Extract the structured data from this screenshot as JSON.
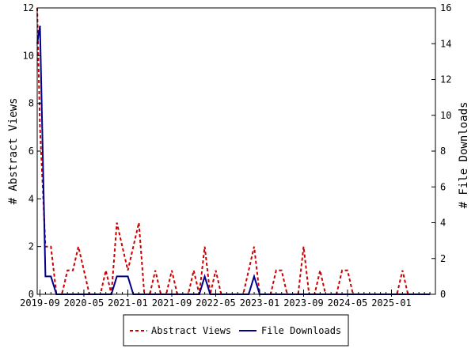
{
  "chart_data": {
    "type": "line",
    "title": "",
    "xlabel": "",
    "ylabel_left": "# Abstract Views",
    "ylabel_right": "# File Downloads",
    "ylim_left": [
      0,
      12
    ],
    "ylim_right": [
      0,
      16
    ],
    "yticks_left": [
      "0",
      "2",
      "4",
      "6",
      "8",
      "10",
      "12"
    ],
    "yticks_right": [
      "0",
      "2",
      "4",
      "6",
      "8",
      "10",
      "12",
      "14",
      "16"
    ],
    "xlim": [
      "2019-09",
      "2025-08"
    ],
    "xticks": [
      "2019-09",
      "2020-05",
      "2021-01",
      "2021-09",
      "2022-05",
      "2023-01",
      "2023-09",
      "2024-05",
      "2025-01"
    ],
    "grid": false,
    "legend_position": "bottom",
    "legend": [
      "Abstract Views",
      "File Downloads"
    ],
    "series": [
      {
        "name": "Abstract Views",
        "axis": "left",
        "color": "#cc0000",
        "dash": "dashed",
        "x": [
          "2019-08",
          "2019-09",
          "2019-10",
          "2019-11",
          "2019-12",
          "2020-01",
          "2020-02",
          "2020-03",
          "2020-04",
          "2020-05",
          "2020-06",
          "2020-07",
          "2020-08",
          "2020-09",
          "2020-10",
          "2020-11",
          "2020-12",
          "2021-01",
          "2021-02",
          "2021-03",
          "2021-04",
          "2021-05",
          "2021-06",
          "2021-07",
          "2021-08",
          "2021-09",
          "2021-10",
          "2021-11",
          "2021-12",
          "2022-01",
          "2022-02",
          "2022-03",
          "2022-04",
          "2022-05",
          "2022-06",
          "2022-07",
          "2022-08",
          "2022-09",
          "2022-10",
          "2022-11",
          "2022-12",
          "2023-01",
          "2023-02",
          "2023-03",
          "2023-04",
          "2023-05",
          "2023-06",
          "2023-07",
          "2023-08",
          "2023-09",
          "2023-10",
          "2023-11",
          "2023-12",
          "2024-01",
          "2024-02",
          "2024-03",
          "2024-04",
          "2024-05",
          "2024-06",
          "2024-07",
          "2024-08",
          "2024-09",
          "2024-10",
          "2024-11",
          "2024-12",
          "2025-01",
          "2025-02",
          "2025-03",
          "2025-04",
          "2025-05",
          "2025-06",
          "2025-07",
          "2025-08"
        ],
        "values": [
          12,
          7,
          2,
          2,
          0,
          0,
          1,
          1,
          2,
          1,
          0,
          0,
          0,
          1,
          0,
          3,
          2,
          1,
          2,
          3,
          0,
          0,
          1,
          0,
          0,
          1,
          0,
          0,
          0,
          1,
          0,
          2,
          0,
          1,
          0,
          0,
          0,
          0,
          0,
          1,
          2,
          0,
          0,
          0,
          1,
          1,
          0,
          0,
          0,
          2,
          0,
          0,
          1,
          0,
          0,
          0,
          1,
          1,
          0,
          0,
          0,
          0,
          0,
          0,
          0,
          0,
          0,
          1,
          0,
          0,
          0,
          0,
          0
        ]
      },
      {
        "name": "File Downloads",
        "axis": "right",
        "color": "#00008b",
        "dash": "solid",
        "x": [
          "2019-08",
          "2019-09",
          "2019-10",
          "2019-11",
          "2019-12",
          "2020-01",
          "2020-02",
          "2020-03",
          "2020-04",
          "2020-05",
          "2020-06",
          "2020-07",
          "2020-08",
          "2020-09",
          "2020-10",
          "2020-11",
          "2020-12",
          "2021-01",
          "2021-02",
          "2021-03",
          "2021-04",
          "2021-05",
          "2021-06",
          "2021-07",
          "2021-08",
          "2021-09",
          "2021-10",
          "2021-11",
          "2021-12",
          "2022-01",
          "2022-02",
          "2022-03",
          "2022-04",
          "2022-05",
          "2022-06",
          "2022-07",
          "2022-08",
          "2022-09",
          "2022-10",
          "2022-11",
          "2022-12",
          "2023-01",
          "2023-02",
          "2023-03",
          "2023-04",
          "2023-05",
          "2023-06",
          "2023-07",
          "2023-08",
          "2023-09",
          "2023-10",
          "2023-11",
          "2023-12",
          "2024-01",
          "2024-02",
          "2024-03",
          "2024-04",
          "2024-05",
          "2024-06",
          "2024-07",
          "2024-08",
          "2024-09",
          "2024-10",
          "2024-11",
          "2024-12",
          "2025-01",
          "2025-02",
          "2025-03",
          "2025-04",
          "2025-05",
          "2025-06",
          "2025-07",
          "2025-08"
        ],
        "values": [
          14,
          15,
          1,
          1,
          0,
          0,
          0,
          0,
          0,
          0,
          0,
          0,
          0,
          0,
          0,
          1,
          1,
          1,
          0,
          0,
          0,
          0,
          0,
          0,
          0,
          0,
          0,
          0,
          0,
          0,
          0,
          1,
          0,
          0,
          0,
          0,
          0,
          0,
          0,
          0,
          1,
          0,
          0,
          0,
          0,
          0,
          0,
          0,
          0,
          0,
          0,
          0,
          0,
          0,
          0,
          0,
          0,
          0,
          0,
          0,
          0,
          0,
          0,
          0,
          0,
          0,
          0,
          0,
          0,
          0,
          0,
          0,
          0
        ]
      }
    ]
  }
}
